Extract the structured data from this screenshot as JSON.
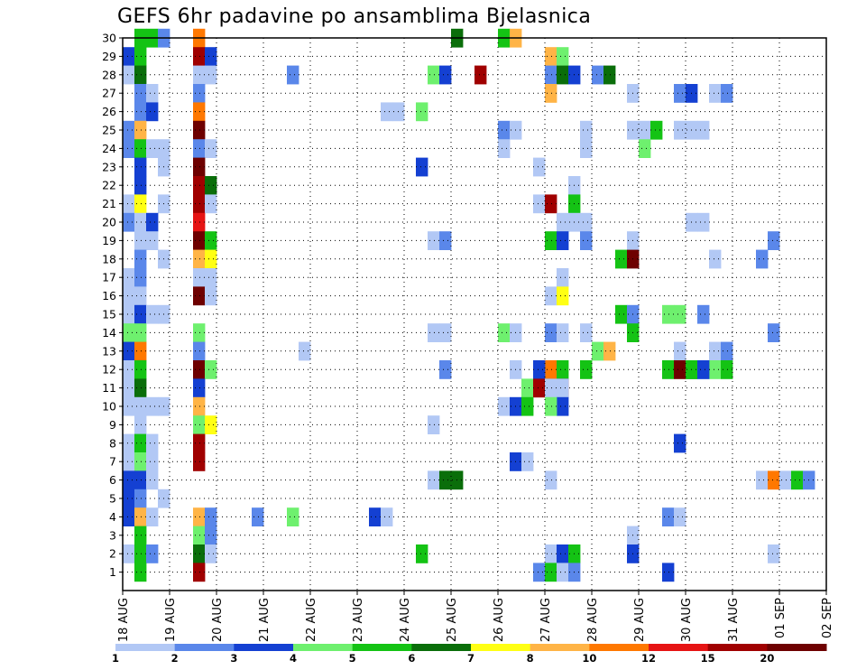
{
  "chart_data": {
    "type": "heatmap",
    "title": "GEFS 6hr padavine po ansamblima Bjelasnica",
    "xlabel": "",
    "ylabel": "",
    "x_tick_labels": [
      "18 AUG",
      "19 AUG",
      "20 AUG",
      "21 AUG",
      "22 AUG",
      "23 AUG",
      "24 AUG",
      "25 AUG",
      "26 AUG",
      "27 AUG",
      "28 AUG",
      "29 AUG",
      "30 AUG",
      "31 AUG",
      "01 SEP",
      "02 SEP"
    ],
    "y_tick_labels": [
      "1",
      "2",
      "3",
      "4",
      "5",
      "6",
      "7",
      "8",
      "9",
      "10",
      "11",
      "12",
      "13",
      "14",
      "15",
      "16",
      "17",
      "18",
      "19",
      "20",
      "21",
      "22",
      "23",
      "24",
      "25",
      "26",
      "27",
      "28",
      "29",
      "30"
    ],
    "x_range_days": [
      0,
      15
    ],
    "steps_per_day": 4,
    "ylim": [
      0,
      30
    ],
    "grid": true,
    "legend": {
      "placement": "bottom",
      "labels": [
        "1",
        "2",
        "3",
        "4",
        "5",
        "6",
        "7",
        "8",
        "10",
        "12",
        "15",
        "20"
      ],
      "colors": [
        "#b2c8f5",
        "#5a87ea",
        "#1440d2",
        "#6ef06e",
        "#14c314",
        "#0a6e0a",
        "#ffff14",
        "#ffb446",
        "#ff7800",
        "#e61414",
        "#a00000",
        "#6e0000"
      ]
    },
    "cells": [
      [
        30,
        1,
        2,
        5
      ],
      [
        30,
        1,
        3,
        5
      ],
      [
        30,
        1,
        4,
        2
      ],
      [
        30,
        1,
        7,
        9
      ],
      [
        30,
        7,
        5,
        6
      ],
      [
        30,
        7,
        9,
        5
      ],
      [
        30,
        7,
        10,
        8
      ],
      [
        29,
        1,
        1,
        3
      ],
      [
        29,
        1,
        2,
        5
      ],
      [
        29,
        1,
        7,
        11
      ],
      [
        29,
        1,
        8,
        3
      ],
      [
        29,
        8,
        9,
        8
      ],
      [
        29,
        8,
        10,
        4
      ],
      [
        28,
        1,
        1,
        1
      ],
      [
        28,
        1,
        2,
        6
      ],
      [
        28,
        1,
        7,
        1
      ],
      [
        28,
        1,
        8,
        1
      ],
      [
        28,
        2,
        11,
        2
      ],
      [
        28,
        7,
        3,
        4
      ],
      [
        28,
        7,
        4,
        3
      ],
      [
        28,
        7,
        7,
        11
      ],
      [
        28,
        8,
        9,
        2
      ],
      [
        28,
        8,
        10,
        6
      ],
      [
        28,
        8,
        11,
        3
      ],
      [
        28,
        10,
        5,
        2
      ],
      [
        28,
        10,
        6,
        6
      ],
      [
        27,
        1,
        2,
        2
      ],
      [
        27,
        1,
        3,
        1
      ],
      [
        27,
        1,
        7,
        2
      ],
      [
        27,
        8,
        9,
        8
      ],
      [
        27,
        11,
        4,
        1
      ],
      [
        27,
        12,
        4,
        2
      ],
      [
        27,
        12,
        5,
        3
      ],
      [
        27,
        12,
        7,
        1
      ],
      [
        27,
        12,
        8,
        2
      ],
      [
        26,
        1,
        2,
        2
      ],
      [
        26,
        1,
        3,
        3
      ],
      [
        26,
        1,
        7,
        9
      ],
      [
        26,
        6,
        3,
        1
      ],
      [
        26,
        6,
        4,
        1
      ],
      [
        26,
        7,
        2,
        4
      ],
      [
        25,
        1,
        1,
        2
      ],
      [
        25,
        1,
        2,
        8
      ],
      [
        25,
        1,
        7,
        12
      ],
      [
        25,
        8,
        12,
        1
      ],
      [
        25,
        9,
        1,
        2
      ],
      [
        25,
        9,
        2,
        1
      ],
      [
        25,
        11,
        4,
        1
      ],
      [
        25,
        11,
        5,
        1
      ],
      [
        25,
        12,
        2,
        5
      ],
      [
        25,
        12,
        4,
        1
      ],
      [
        25,
        12,
        5,
        1
      ],
      [
        25,
        13,
        2,
        1
      ],
      [
        24,
        1,
        1,
        2
      ],
      [
        24,
        1,
        2,
        5
      ],
      [
        24,
        1,
        3,
        1
      ],
      [
        24,
        1,
        4,
        1
      ],
      [
        24,
        1,
        7,
        2
      ],
      [
        24,
        1,
        8,
        1
      ],
      [
        24,
        8,
        12,
        1
      ],
      [
        24,
        9,
        1,
        1
      ],
      [
        24,
        11,
        5,
        4
      ],
      [
        23,
        1,
        2,
        3
      ],
      [
        23,
        1,
        4,
        1
      ],
      [
        23,
        1,
        7,
        12
      ],
      [
        23,
        7,
        2,
        3
      ],
      [
        23,
        9,
        4,
        1
      ],
      [
        22,
        1,
        2,
        3
      ],
      [
        22,
        1,
        7,
        11
      ],
      [
        22,
        1,
        8,
        6
      ],
      [
        22,
        8,
        11,
        1
      ],
      [
        21,
        1,
        1,
        1
      ],
      [
        21,
        1,
        2,
        7
      ],
      [
        21,
        1,
        4,
        1
      ],
      [
        21,
        1,
        7,
        11
      ],
      [
        21,
        1,
        8,
        1
      ],
      [
        21,
        8,
        11,
        5
      ],
      [
        21,
        9,
        4,
        1
      ],
      [
        21,
        9,
        5,
        11
      ],
      [
        20,
        1,
        1,
        2
      ],
      [
        20,
        1,
        2,
        1
      ],
      [
        20,
        1,
        3,
        3
      ],
      [
        20,
        1,
        7,
        10
      ],
      [
        20,
        8,
        10,
        1
      ],
      [
        20,
        8,
        11,
        1
      ],
      [
        20,
        8,
        12,
        1
      ],
      [
        20,
        13,
        1,
        1
      ],
      [
        20,
        13,
        2,
        1
      ],
      [
        19,
        1,
        2,
        1
      ],
      [
        19,
        1,
        3,
        1
      ],
      [
        19,
        1,
        7,
        12
      ],
      [
        19,
        1,
        8,
        5
      ],
      [
        19,
        7,
        3,
        1
      ],
      [
        19,
        7,
        4,
        2
      ],
      [
        19,
        8,
        10,
        1
      ],
      [
        19,
        9,
        12,
        1
      ],
      [
        19,
        10,
        1,
        5
      ],
      [
        19,
        10,
        2,
        3
      ],
      [
        19,
        10,
        4,
        2
      ],
      [
        19,
        14,
        4,
        2
      ],
      [
        18,
        1,
        2,
        2
      ],
      [
        18,
        1,
        4,
        1
      ],
      [
        18,
        1,
        7,
        8
      ],
      [
        18,
        1,
        8,
        7
      ],
      [
        18,
        9,
        11,
        5
      ],
      [
        18,
        9,
        12,
        12
      ],
      [
        18,
        12,
        7,
        1
      ],
      [
        18,
        14,
        3,
        2
      ],
      [
        17,
        1,
        1,
        1
      ],
      [
        17,
        1,
        2,
        2
      ],
      [
        17,
        1,
        7,
        1
      ],
      [
        17,
        1,
        8,
        1
      ],
      [
        17,
        8,
        10,
        1
      ],
      [
        16,
        1,
        1,
        1
      ],
      [
        16,
        1,
        2,
        1
      ],
      [
        16,
        1,
        7,
        12
      ],
      [
        16,
        1,
        8,
        1
      ],
      [
        16,
        8,
        9,
        1
      ],
      [
        16,
        8,
        10,
        7
      ],
      [
        15,
        1,
        1,
        1
      ],
      [
        15,
        1,
        2,
        3
      ],
      [
        15,
        1,
        3,
        1
      ],
      [
        15,
        1,
        4,
        1
      ],
      [
        15,
        11,
        3,
        5
      ],
      [
        15,
        11,
        4,
        2
      ],
      [
        15,
        12,
        3,
        4
      ],
      [
        15,
        12,
        4,
        4
      ],
      [
        15,
        13,
        2,
        2
      ],
      [
        14,
        1,
        1,
        4
      ],
      [
        14,
        1,
        2,
        4
      ],
      [
        14,
        1,
        7,
        4
      ],
      [
        14,
        7,
        3,
        1
      ],
      [
        14,
        7,
        4,
        1
      ],
      [
        14,
        8,
        9,
        2
      ],
      [
        14,
        8,
        10,
        1
      ],
      [
        14,
        8,
        12,
        1
      ],
      [
        14,
        9,
        1,
        4
      ],
      [
        14,
        9,
        2,
        1
      ],
      [
        14,
        9,
        12,
        5
      ],
      [
        14,
        14,
        4,
        2
      ],
      [
        13,
        1,
        1,
        3
      ],
      [
        13,
        1,
        2,
        9
      ],
      [
        13,
        1,
        7,
        2
      ],
      [
        13,
        3,
        8,
        1
      ],
      [
        13,
        10,
        12,
        1
      ],
      [
        13,
        11,
        1,
        4
      ],
      [
        13,
        11,
        2,
        8
      ],
      [
        13,
        12,
        7,
        1
      ],
      [
        13,
        12,
        8,
        2
      ],
      [
        12,
        1,
        1,
        1
      ],
      [
        12,
        1,
        2,
        5
      ],
      [
        12,
        1,
        7,
        12
      ],
      [
        12,
        1,
        8,
        4
      ],
      [
        12,
        7,
        4,
        2
      ],
      [
        12,
        8,
        9,
        9
      ],
      [
        12,
        8,
        10,
        5
      ],
      [
        12,
        8,
        12,
        5
      ],
      [
        12,
        9,
        2,
        1
      ],
      [
        12,
        9,
        4,
        3
      ],
      [
        12,
        12,
        3,
        5
      ],
      [
        12,
        12,
        4,
        12
      ],
      [
        12,
        12,
        5,
        6
      ],
      [
        12,
        12,
        6,
        1
      ],
      [
        12,
        12,
        7,
        4
      ],
      [
        12,
        12,
        8,
        5
      ],
      [
        12,
        13,
        1,
        5
      ],
      [
        12,
        13,
        2,
        3
      ],
      [
        11,
        1,
        1,
        1
      ],
      [
        11,
        1,
        2,
        6
      ],
      [
        11,
        1,
        7,
        3
      ],
      [
        11,
        8,
        9,
        8
      ],
      [
        11,
        8,
        10,
        3
      ],
      [
        11,
        9,
        3,
        4
      ],
      [
        11,
        9,
        4,
        11
      ],
      [
        11,
        9,
        5,
        12
      ],
      [
        11,
        9,
        6,
        11
      ],
      [
        11,
        10,
        1,
        1
      ],
      [
        11,
        10,
        2,
        1
      ],
      [
        10,
        1,
        1,
        1
      ],
      [
        10,
        1,
        2,
        1
      ],
      [
        10,
        1,
        3,
        1
      ],
      [
        10,
        1,
        4,
        1
      ],
      [
        10,
        1,
        7,
        8
      ],
      [
        10,
        8,
        10,
        3
      ],
      [
        10,
        9,
        1,
        1
      ],
      [
        10,
        9,
        2,
        3
      ],
      [
        10,
        9,
        3,
        5
      ],
      [
        10,
        10,
        1,
        4
      ],
      [
        9,
        1,
        2,
        1
      ],
      [
        9,
        1,
        7,
        4
      ],
      [
        9,
        1,
        8,
        7
      ],
      [
        9,
        7,
        3,
        1
      ],
      [
        8,
        1,
        1,
        1
      ],
      [
        8,
        1,
        2,
        5
      ],
      [
        8,
        1,
        3,
        1
      ],
      [
        8,
        1,
        7,
        11
      ],
      [
        8,
        12,
        4,
        3
      ],
      [
        7,
        1,
        1,
        1
      ],
      [
        7,
        1,
        2,
        4
      ],
      [
        7,
        1,
        3,
        1
      ],
      [
        7,
        1,
        7,
        11
      ],
      [
        7,
        9,
        2,
        3
      ],
      [
        7,
        9,
        3,
        1
      ],
      [
        6,
        1,
        1,
        3
      ],
      [
        6,
        1,
        2,
        3
      ],
      [
        6,
        1,
        3,
        1
      ],
      [
        6,
        7,
        3,
        1
      ],
      [
        6,
        7,
        4,
        6
      ],
      [
        6,
        7,
        5,
        6
      ],
      [
        6,
        8,
        9,
        1
      ],
      [
        6,
        14,
        3,
        1
      ],
      [
        6,
        14,
        4,
        9
      ],
      [
        6,
        14,
        5,
        1
      ],
      [
        6,
        14,
        6,
        5
      ],
      [
        6,
        14,
        7,
        2
      ],
      [
        5,
        1,
        1,
        3
      ],
      [
        5,
        1,
        2,
        2
      ],
      [
        5,
        1,
        4,
        1
      ],
      [
        4,
        1,
        1,
        3
      ],
      [
        4,
        1,
        2,
        8
      ],
      [
        4,
        1,
        3,
        1
      ],
      [
        4,
        1,
        7,
        8
      ],
      [
        4,
        1,
        8,
        2
      ],
      [
        4,
        3,
        4,
        2
      ],
      [
        4,
        4,
        3,
        4
      ],
      [
        4,
        6,
        2,
        3
      ],
      [
        4,
        6,
        3,
        1
      ],
      [
        4,
        12,
        3,
        2
      ],
      [
        4,
        12,
        4,
        1
      ],
      [
        3,
        1,
        2,
        5
      ],
      [
        3,
        1,
        7,
        4
      ],
      [
        3,
        1,
        8,
        2
      ],
      [
        3,
        9,
        12,
        1
      ],
      [
        2,
        1,
        1,
        1
      ],
      [
        2,
        1,
        2,
        5
      ],
      [
        2,
        1,
        3,
        2
      ],
      [
        2,
        1,
        7,
        6
      ],
      [
        2,
        1,
        8,
        1
      ],
      [
        2,
        7,
        2,
        5
      ],
      [
        2,
        8,
        9,
        1
      ],
      [
        2,
        9,
        12,
        3
      ],
      [
        2,
        10,
        2,
        3
      ],
      [
        2,
        10,
        3,
        5
      ],
      [
        2,
        14,
        4,
        1
      ],
      [
        1,
        1,
        2,
        5
      ],
      [
        1,
        1,
        7,
        11
      ],
      [
        1,
        8,
        8,
        2
      ],
      [
        1,
        8,
        9,
        5
      ],
      [
        1,
        10,
        2,
        1
      ],
      [
        1,
        10,
        3,
        2
      ],
      [
        1,
        12,
        3,
        3
      ]
    ]
  }
}
